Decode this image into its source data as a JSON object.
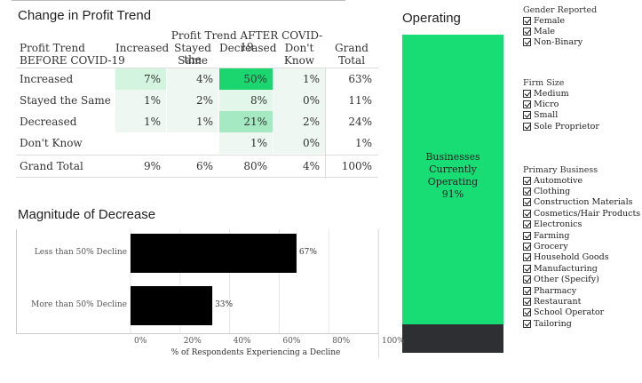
{
  "profit_trend": {
    "title": "Change in Profit Trend",
    "after_header": "Profit Trend AFTER COVID-19",
    "row_header_line1": "Profit Trend",
    "row_header_line2": "BEFORE COVID-19",
    "columns": [
      "Increased",
      "Stayed the Same",
      "Decreased",
      "Don't Know",
      "Grand Total"
    ],
    "col_stayed_line1": "Stayed the",
    "col_stayed_line2": "Same",
    "col_dontknow_line1": "Don't",
    "col_dontknow_line2": "Know",
    "col_grand_line1": "Grand",
    "col_grand_line2": "Total",
    "rows": [
      {
        "label": "Increased",
        "cells": [
          "7%",
          "4%",
          "50%",
          "1%",
          "63%"
        ],
        "fills": [
          "#d3f5e0",
          "#eef7f1",
          "#1bd66f",
          "#eef7f1",
          "#ffffff"
        ]
      },
      {
        "label": "Stayed the Same",
        "cells": [
          "1%",
          "2%",
          "8%",
          "0%",
          "11%"
        ],
        "fills": [
          "#eef7f1",
          "#eef7f1",
          "#e3f6ea",
          "#eef7f1",
          "#ffffff"
        ]
      },
      {
        "label": "Decreased",
        "cells": [
          "1%",
          "1%",
          "21%",
          "2%",
          "24%"
        ],
        "fills": [
          "#eef7f1",
          "#eef7f1",
          "#a5e9c2",
          "#eef7f1",
          "#ffffff"
        ]
      },
      {
        "label": "Don't Know",
        "cells": [
          "",
          "",
          "1%",
          "0%",
          "1%"
        ],
        "fills": [
          "#ffffff",
          "#ffffff",
          "#eef7f1",
          "#eef7f1",
          "#ffffff"
        ]
      },
      {
        "label": "Grand Total",
        "cells": [
          "9%",
          "6%",
          "80%",
          "4%",
          "100%"
        ],
        "fills": [
          "#ffffff",
          "#ffffff",
          "#ffffff",
          "#ffffff",
          "#ffffff"
        ]
      }
    ]
  },
  "magnitude": {
    "title": "Magnitude of Decrease",
    "xlabel": "% of Respondents Experiencing a Decline",
    "ticks": [
      "0%",
      "20%",
      "40%",
      "60%",
      "80%",
      "100%"
    ]
  },
  "chart_data": {
    "type": "bar",
    "orientation": "horizontal",
    "categories": [
      "Less than 50% Decline",
      "More than 50% Decline"
    ],
    "values": [
      67,
      33
    ],
    "value_labels": [
      "67%",
      "33%"
    ],
    "xlabel": "% of Respondents Experiencing a Decline",
    "xlim": [
      0,
      100
    ],
    "bar_color": "#000000"
  },
  "operating": {
    "title": "Operating",
    "label_line1": "Businesses",
    "label_line2": "Currently",
    "label_line3": "Operating",
    "label_line4": "91%",
    "value": 91,
    "operating_color": "#18dd75",
    "other_color": "#2e2f33"
  },
  "filters": {
    "gender": {
      "title": "Gender Reported",
      "items": [
        "Female",
        "Male",
        "Non-Binary"
      ]
    },
    "firm_size": {
      "title": "Firm Size",
      "items": [
        "Medium",
        "Micro",
        "Small",
        "Sole Proprietor"
      ]
    },
    "primary_business": {
      "title": "Primary Business",
      "items": [
        "Automotive",
        "Clothing",
        "Construction Materials",
        "Cosmetics/Hair Products",
        "Electronics",
        "Farming",
        "Grocery",
        "Household Goods",
        "Manufacturing",
        "Other (Specify)",
        "Pharmacy",
        "Restaurant",
        "School Operator",
        "Tailoring"
      ]
    }
  }
}
